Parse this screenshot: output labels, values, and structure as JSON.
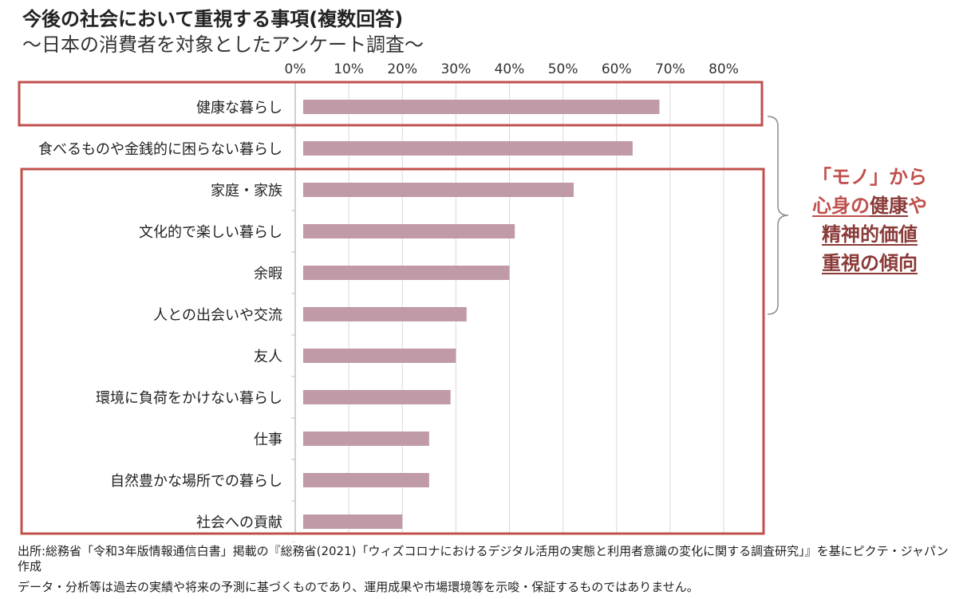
{
  "chart_data": {
    "type": "bar",
    "orientation": "horizontal",
    "title": "今後の社会において重視する事項(複数回答)",
    "subtitle": "〜日本の消費者を対象としたアンケート調査〜",
    "categories": [
      "健康な暮らし",
      "食べるものや金銭的に困らない暮らし",
      "家庭・家族",
      "文化的で楽しい暮らし",
      "余暇",
      "人との出会いや交流",
      "友人",
      "環境に負荷をかけない暮らし",
      "仕事",
      "自然豊かな場所での暮らし",
      "社会への貢献"
    ],
    "values": [
      68,
      63,
      52,
      41,
      40,
      32,
      30,
      29,
      25,
      25,
      20
    ],
    "xlim": [
      0,
      80
    ],
    "xticks": [
      "0%",
      "10%",
      "20%",
      "30%",
      "40%",
      "50%",
      "60%",
      "70%",
      "80%"
    ],
    "grid": true,
    "colors": {
      "bar": "#c09aa6",
      "highlight_box": "#c0504d",
      "gridline": "#d9d9d9",
      "axis": "#bfbfbf"
    }
  },
  "annotation": {
    "line1": "「モノ」から",
    "line2_a": "心身の",
    "line2_b": "健康",
    "line2_c": "や",
    "line3": "精神的価値",
    "line4": "重視の傾向"
  },
  "source": "出所:総務省「令和3年版情報通信白書」掲載の『総務省(2021)「ウィズコロナにおけるデジタル活用の実態と利用者意識の変化に関する調査研究」』を基にピクテ・ジャパン作成",
  "disclaimer": "データ・分析等は過去の実績や将来の予測に基づくものであり、運用成果や市場環境等を示唆・保証するものではありません。"
}
